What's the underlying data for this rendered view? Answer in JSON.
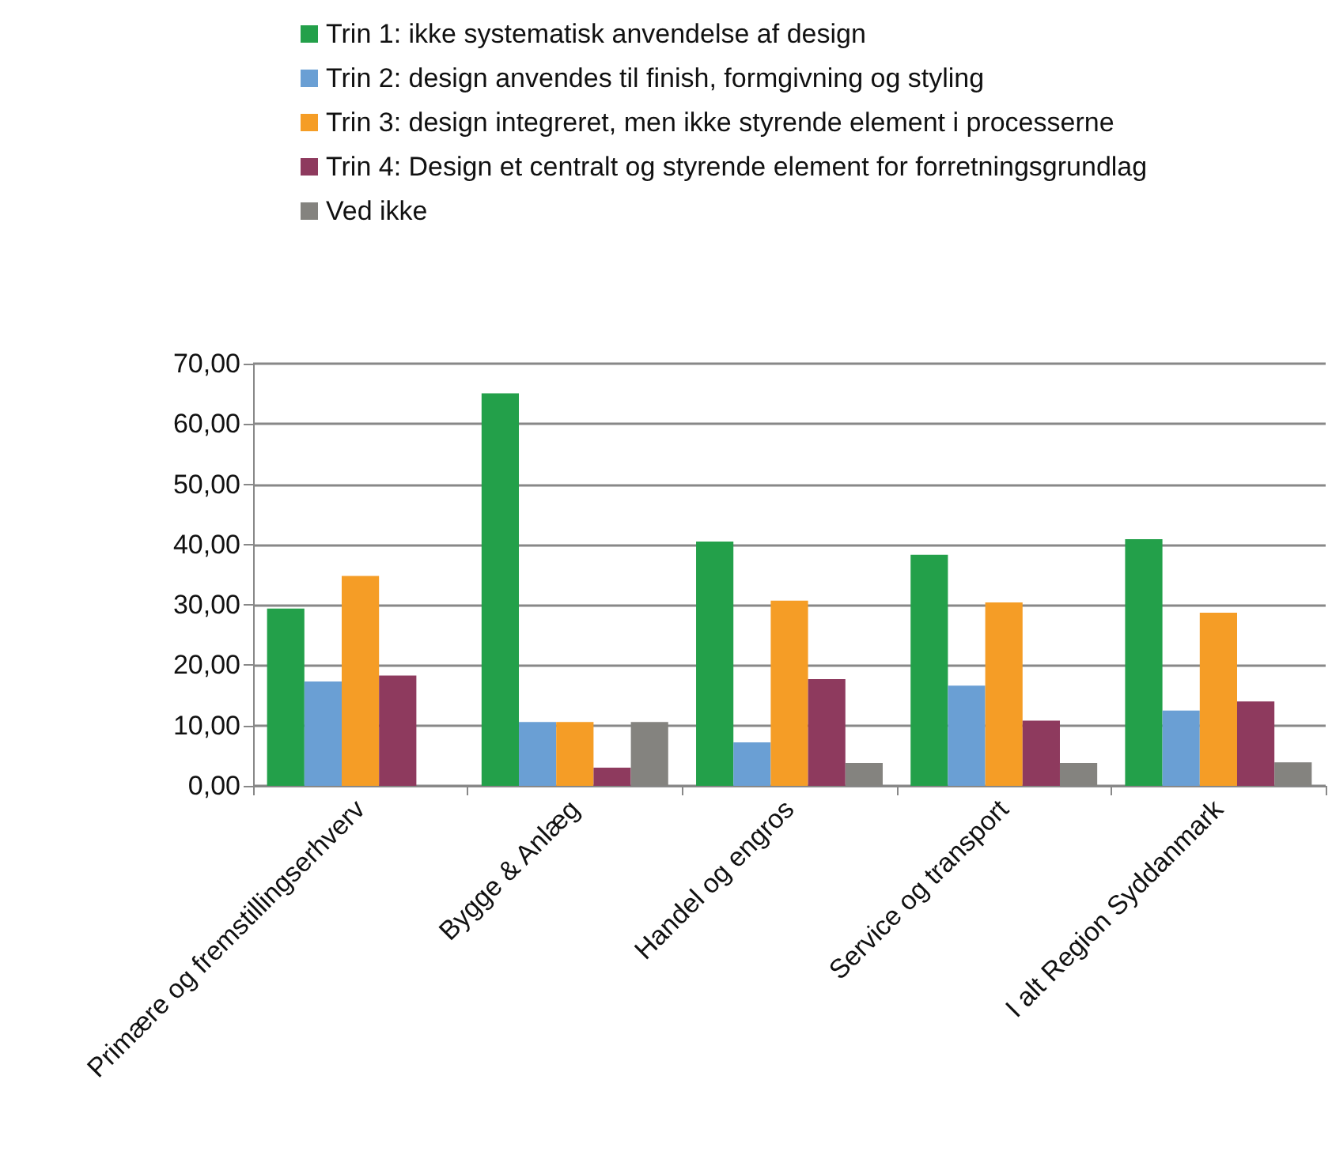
{
  "chart_data": {
    "type": "bar",
    "categories": [
      "Primære og fremstillingserhverv",
      "Bygge & Anlæg",
      "Handel og engros",
      "Service og transport",
      "I alt Region Syddanmark"
    ],
    "series": [
      {
        "name": "Trin 1: ikke systematisk anvendelse af design",
        "color": "#23a04a",
        "values": [
          29.4,
          65.1,
          40.5,
          38.3,
          40.9
        ]
      },
      {
        "name": "Trin 2: design anvendes til finish, formgivning og styling",
        "color": "#6a9fd4",
        "values": [
          17.3,
          10.6,
          7.2,
          16.6,
          12.5
        ]
      },
      {
        "name": "Trin 3: design integreret, men ikke styrende element i processerne",
        "color": "#f59d26",
        "values": [
          34.8,
          10.6,
          30.7,
          30.4,
          28.7
        ]
      },
      {
        "name": "Trin 4: Design et centralt og styrende element for forretningsgrundlag",
        "color": "#8e3a5e",
        "values": [
          18.3,
          3.0,
          17.7,
          10.8,
          14.0
        ]
      },
      {
        "name": "Ved ikke",
        "color": "#84837f",
        "values": [
          null,
          10.6,
          3.8,
          3.8,
          3.9
        ]
      }
    ],
    "ylim": [
      0,
      70
    ],
    "yticks": [
      {
        "value": 0,
        "label": "0,00"
      },
      {
        "value": 10,
        "label": "10,00"
      },
      {
        "value": 20,
        "label": "20,00"
      },
      {
        "value": 30,
        "label": "30,00"
      },
      {
        "value": 40,
        "label": "40,00"
      },
      {
        "value": 50,
        "label": "50,00"
      },
      {
        "value": 60,
        "label": "60,00"
      },
      {
        "value": 70,
        "label": "70,00"
      }
    ],
    "grid": "y",
    "legend": "top"
  }
}
